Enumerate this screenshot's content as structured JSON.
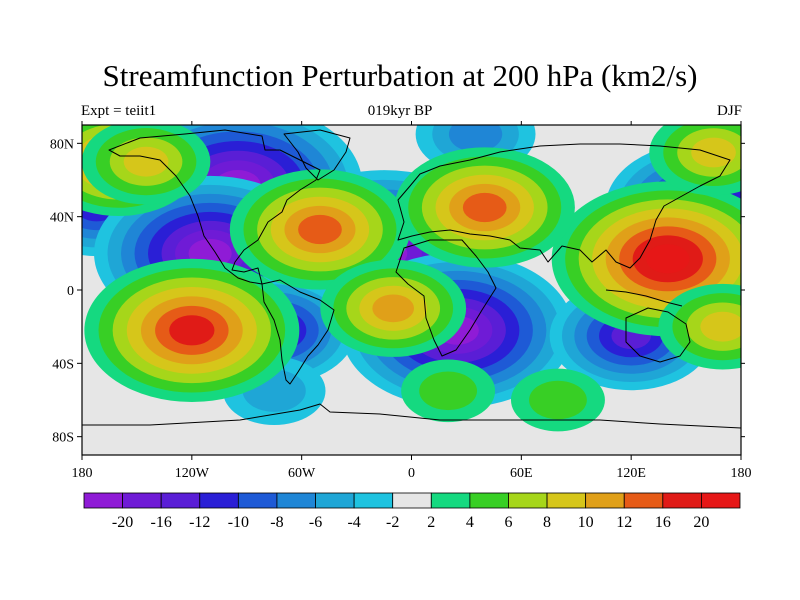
{
  "figure": {
    "title": "Streamfunction Perturbation at 200 hPa (km2/s)",
    "left_label": "Expt = teiit1",
    "center_label": "019kyr BP",
    "right_label": "DJF"
  },
  "axes": {
    "lon_ticks": [
      "180",
      "120W",
      "60W",
      "0",
      "60E",
      "120E",
      "180"
    ],
    "lat_ticks": [
      "80N",
      "40N",
      "0",
      "40S",
      "80S"
    ],
    "lon_values": [
      -180,
      -120,
      -60,
      0,
      60,
      120,
      180
    ],
    "lat_values": [
      80,
      40,
      0,
      -40,
      -80
    ],
    "lon_range": [
      -180,
      180
    ],
    "lat_range": [
      -90,
      90
    ]
  },
  "colorbar": {
    "labels": [
      "-20",
      "-16",
      "-12",
      "-10",
      "-8",
      "-6",
      "-4",
      "-2",
      "2",
      "4",
      "6",
      "8",
      "10",
      "12",
      "16",
      "20"
    ],
    "colors": [
      "#8f1bd6",
      "#6f1bd6",
      "#5a1ed6",
      "#2a1fd6",
      "#1e5ad6",
      "#1f86d6",
      "#1fa6d6",
      "#1fc3e0",
      "#e6e6e6",
      "#15d980",
      "#38cf25",
      "#a6d61a",
      "#d6c61a",
      "#e0a019",
      "#e65b17",
      "#e01b17",
      "#e61717"
    ]
  },
  "field": {
    "neutral_color": "#e6e6e6",
    "centers": [
      {
        "lon": -95,
        "lat": 57,
        "value": -22
      },
      {
        "lon": -172,
        "lat": 45,
        "value": -10
      },
      {
        "lon": -110,
        "lat": 20,
        "value": -20
      },
      {
        "lon": -15,
        "lat": 20,
        "value": -22
      },
      {
        "lon": 25,
        "lat": -22,
        "value": -20
      },
      {
        "lon": -75,
        "lat": -22,
        "value": -12
      },
      {
        "lon": 120,
        "lat": -25,
        "value": -12
      },
      {
        "lon": 160,
        "lat": 45,
        "value": -16
      },
      {
        "lon": 35,
        "lat": 85,
        "value": -7
      },
      {
        "lon": -75,
        "lat": -55,
        "value": -5
      },
      {
        "lon": -120,
        "lat": -22,
        "value": 18
      },
      {
        "lon": 140,
        "lat": 17,
        "value": 20
      },
      {
        "lon": 40,
        "lat": 45,
        "value": 14
      },
      {
        "lon": -160,
        "lat": 70,
        "value": 12
      },
      {
        "lon": -50,
        "lat": 33,
        "value": 14
      },
      {
        "lon": -10,
        "lat": -10,
        "value": 10
      },
      {
        "lon": 165,
        "lat": 75,
        "value": 8
      },
      {
        "lon": 170,
        "lat": -20,
        "value": 8
      },
      {
        "lon": -145,
        "lat": 70,
        "value": 8
      },
      {
        "lon": 20,
        "lat": -55,
        "value": 4
      },
      {
        "lon": 80,
        "lat": -60,
        "value": 4
      }
    ]
  }
}
